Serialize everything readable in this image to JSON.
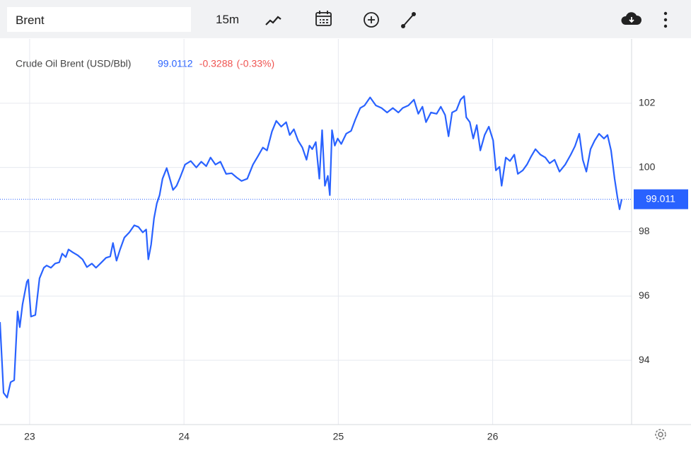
{
  "toolbar": {
    "symbol": "Brent",
    "interval": "15m"
  },
  "chart_data": {
    "type": "line",
    "title": "Crude Oil Brent (USD/Bbl)",
    "last_price": {
      "value": 99.0112,
      "label": "99.011"
    },
    "header_price": "99.0112",
    "change": "-0.3288",
    "change_pct": {
      "value": -0.33,
      "label": "(-0.33%)"
    },
    "xlim": [
      22.808,
      26.9
    ],
    "xticks": [
      23,
      24,
      25,
      26
    ],
    "ylim": [
      92,
      104
    ],
    "yticks": [
      94,
      96,
      98,
      100,
      102
    ],
    "grid": true,
    "series": [
      {
        "name": "Crude Oil Brent",
        "color": "#2962ff",
        "x": [
          22.808,
          22.831,
          22.854,
          22.877,
          22.9,
          22.922,
          22.936,
          22.954,
          22.982,
          22.991,
          23.009,
          23.037,
          23.064,
          23.092,
          23.11,
          23.138,
          23.165,
          23.192,
          23.211,
          23.234,
          23.252,
          23.279,
          23.311,
          23.343,
          23.371,
          23.403,
          23.43,
          23.462,
          23.495,
          23.522,
          23.54,
          23.563,
          23.586,
          23.614,
          23.646,
          23.678,
          23.705,
          23.733,
          23.755,
          23.769,
          23.787,
          23.806,
          23.824,
          23.842,
          23.861,
          23.888,
          23.906,
          23.929,
          23.952,
          23.975,
          24.007,
          24.044,
          24.08,
          24.112,
          24.144,
          24.172,
          24.204,
          24.236,
          24.273,
          24.309,
          24.341,
          24.373,
          24.41,
          24.447,
          24.479,
          24.511,
          24.538,
          24.57,
          24.598,
          24.63,
          24.662,
          24.685,
          24.712,
          24.739,
          24.767,
          24.794,
          24.813,
          24.831,
          24.854,
          24.877,
          24.895,
          24.913,
          24.932,
          24.945,
          24.959,
          24.977,
          24.996,
          25.019,
          25.051,
          25.083,
          25.11,
          25.142,
          25.17,
          25.206,
          25.243,
          25.28,
          25.316,
          25.353,
          25.389,
          25.417,
          25.454,
          25.49,
          25.518,
          25.545,
          25.568,
          25.6,
          25.637,
          25.664,
          25.692,
          25.714,
          25.737,
          25.765,
          25.792,
          25.815,
          25.829,
          25.852,
          25.874,
          25.897,
          25.92,
          25.948,
          25.975,
          26.003,
          26.021,
          26.044,
          26.058,
          26.085,
          26.112,
          26.14,
          26.163,
          26.195,
          26.222,
          26.25,
          26.277,
          26.309,
          26.341,
          26.369,
          26.401,
          26.433,
          26.47,
          26.506,
          26.533,
          26.561,
          26.584,
          26.607,
          26.634,
          26.661,
          26.689,
          26.721,
          26.744,
          26.767,
          26.79,
          26.808,
          26.822,
          26.836
        ],
        "values": [
          95.19,
          92.99,
          92.84,
          93.32,
          93.38,
          95.52,
          95.03,
          95.74,
          96.44,
          96.51,
          95.36,
          95.41,
          96.55,
          96.88,
          96.95,
          96.88,
          97.01,
          97.05,
          97.32,
          97.21,
          97.45,
          97.36,
          97.27,
          97.14,
          96.9,
          97.01,
          96.88,
          97.03,
          97.19,
          97.23,
          97.65,
          97.1,
          97.45,
          97.82,
          97.98,
          98.2,
          98.15,
          97.98,
          98.07,
          97.14,
          97.6,
          98.42,
          98.88,
          99.14,
          99.65,
          99.98,
          99.69,
          99.3,
          99.43,
          99.69,
          100.09,
          100.2,
          100.0,
          100.18,
          100.04,
          100.31,
          100.09,
          100.18,
          99.8,
          99.82,
          99.69,
          99.58,
          99.65,
          100.09,
          100.35,
          100.62,
          100.53,
          101.12,
          101.45,
          101.27,
          101.41,
          101.01,
          101.19,
          100.84,
          100.62,
          100.24,
          100.68,
          100.57,
          100.79,
          99.65,
          101.16,
          99.43,
          99.74,
          99.14,
          101.16,
          100.68,
          100.9,
          100.73,
          101.05,
          101.14,
          101.49,
          101.85,
          101.93,
          102.18,
          101.93,
          101.85,
          101.71,
          101.85,
          101.71,
          101.85,
          101.93,
          102.11,
          101.67,
          101.89,
          101.41,
          101.71,
          101.67,
          101.89,
          101.63,
          100.97,
          101.71,
          101.78,
          102.11,
          102.22,
          101.56,
          101.41,
          100.9,
          101.32,
          100.53,
          101.01,
          101.27,
          100.84,
          99.91,
          100.02,
          99.43,
          100.31,
          100.2,
          100.4,
          99.8,
          99.91,
          100.09,
          100.35,
          100.57,
          100.4,
          100.31,
          100.13,
          100.24,
          99.87,
          100.09,
          100.4,
          100.66,
          101.05,
          100.24,
          99.87,
          100.57,
          100.84,
          101.05,
          100.9,
          101.01,
          100.53,
          99.65,
          99.08,
          98.7,
          99.01
        ]
      }
    ]
  }
}
